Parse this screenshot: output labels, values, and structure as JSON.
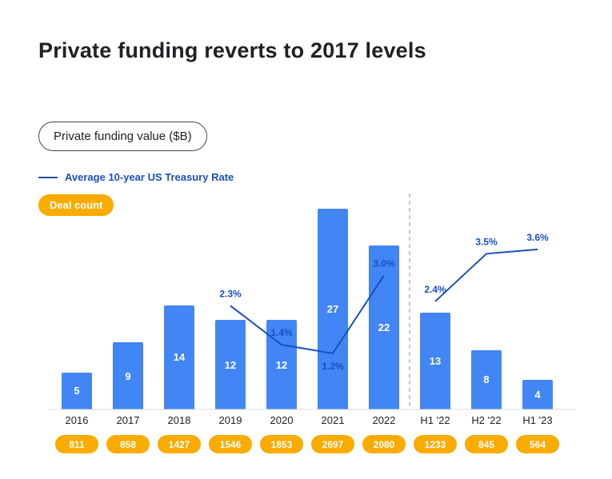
{
  "title": "Private funding reverts to 2017 levels",
  "legend": {
    "funding_pill_label": "Private funding value ($B)",
    "treasury_label": "Average 10-year US Treasury Rate",
    "deal_count_label": "Deal count"
  },
  "colors": {
    "bar": "#4285F4",
    "line": "#1A4FC4",
    "deal_pill": "#F9AB00",
    "divider": "#B5B5B5",
    "axis": "#DADCE0"
  },
  "chart_data": {
    "type": "bar",
    "title": "Private funding reverts to 2017 levels",
    "categories": [
      "2016",
      "2017",
      "2018",
      "2019",
      "2020",
      "2021",
      "2022",
      "H1 '22",
      "H2 '22",
      "H1 '23"
    ],
    "series_bar": {
      "name": "Private funding value ($B)",
      "type": "bar",
      "values": [
        5,
        9,
        14,
        12,
        12,
        27,
        22,
        13,
        8,
        4
      ]
    },
    "series_line": {
      "name": "Average 10-year US Treasury Rate",
      "type": "line",
      "unit": "%",
      "segments": [
        {
          "points": [
            {
              "category": "2019",
              "rate": 2.3,
              "label": "2.3%",
              "label_side": "above"
            },
            {
              "category": "2020",
              "rate": 1.4,
              "label": "1.4%",
              "label_side": "above"
            },
            {
              "category": "2021",
              "rate": 1.2,
              "label": "1.2%",
              "label_side": "below"
            },
            {
              "category": "2022",
              "rate": 3.0,
              "label": "3.0%",
              "label_side": "above"
            }
          ]
        },
        {
          "points": [
            {
              "category": "H1 '22",
              "rate": 2.4,
              "label": "2.4%",
              "label_side": "above"
            },
            {
              "category": "H2 '22",
              "rate": 3.5,
              "label": "3.5%",
              "label_side": "above"
            },
            {
              "category": "H1 '23",
              "rate": 3.6,
              "label": "3.6%",
              "label_side": "above"
            }
          ]
        }
      ]
    },
    "series_deals": {
      "name": "Deal count",
      "values": [
        811,
        858,
        1427,
        1546,
        1853,
        2697,
        2080,
        1233,
        845,
        564
      ]
    },
    "divider_after_category": "2022",
    "legend_position": "top-left",
    "grid": false
  }
}
